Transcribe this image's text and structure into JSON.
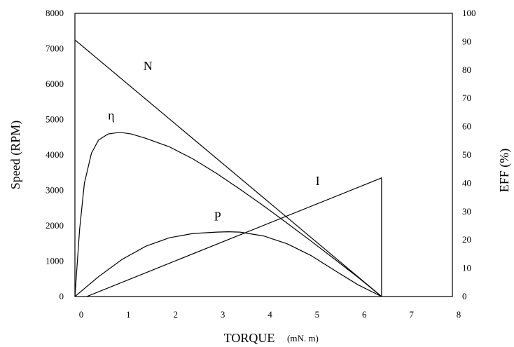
{
  "chart_data": {
    "type": "line",
    "xlabel": "TORQUE",
    "xunit": "(mN. m)",
    "ylabel_left": "Speed (RPM)",
    "ylabel_right": "EFF (%)",
    "xlim": [
      0,
      8
    ],
    "ylim_left": [
      0,
      8000
    ],
    "ylim_right": [
      0,
      100
    ],
    "x_ticks": [
      "0",
      "1",
      "2",
      "3",
      "4",
      "5",
      "6",
      "7",
      "8"
    ],
    "y_left_ticks": [
      "0",
      "1000",
      "2000",
      "3000",
      "4000",
      "5000",
      "6000",
      "7000",
      "8000"
    ],
    "y_right_ticks": [
      "0",
      "10",
      "20",
      "30",
      "40",
      "50",
      "60",
      "70",
      "80",
      "90",
      "100"
    ],
    "grid": false,
    "series": [
      {
        "name": "N",
        "axis": "left",
        "x": [
          0,
          6.5
        ],
        "y": [
          7250,
          0
        ]
      },
      {
        "name": "η",
        "axis": "left",
        "x": [
          0,
          0.1,
          0.2,
          0.35,
          0.5,
          0.7,
          0.9,
          1.0,
          1.2,
          1.5,
          2.0,
          2.5,
          3.0,
          3.5,
          4.0,
          4.5,
          5.0,
          5.5,
          6.0,
          6.5
        ],
        "y": [
          0,
          1900,
          3200,
          4050,
          4420,
          4590,
          4630,
          4630,
          4590,
          4470,
          4230,
          3890,
          3480,
          3030,
          2560,
          2070,
          1570,
          1060,
          540,
          0
        ]
      },
      {
        "name": "P",
        "axis": "left",
        "x": [
          0,
          0.5,
          1.0,
          1.5,
          2.0,
          2.5,
          3.0,
          3.25,
          3.5,
          4.0,
          4.5,
          5.0,
          5.5,
          6.0,
          6.5
        ],
        "y": [
          0,
          560,
          1050,
          1420,
          1660,
          1780,
          1820,
          1830,
          1820,
          1710,
          1490,
          1160,
          740,
          330,
          0
        ]
      },
      {
        "name": "I",
        "axis": "left",
        "x": [
          0.25,
          6.5,
          6.5
        ],
        "y": [
          0,
          3350,
          0
        ]
      }
    ]
  }
}
